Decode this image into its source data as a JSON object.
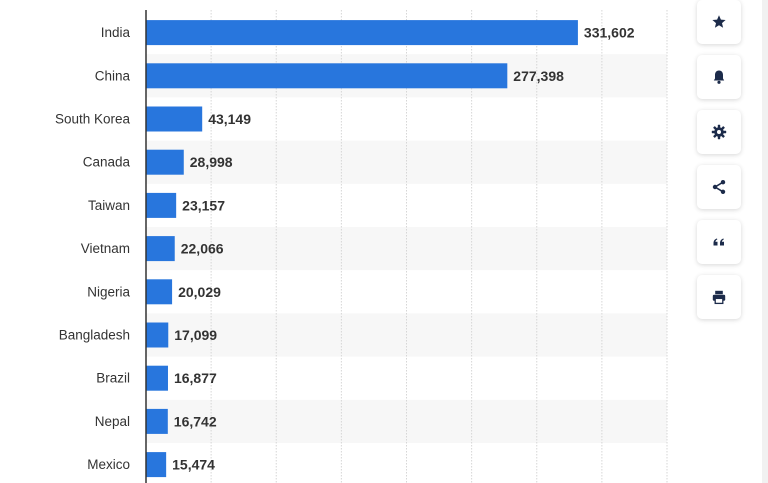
{
  "chart_data": {
    "type": "bar",
    "orientation": "horizontal",
    "categories": [
      "India",
      "China",
      "South Korea",
      "Canada",
      "Taiwan",
      "Vietnam",
      "Nigeria",
      "Bangladesh",
      "Brazil",
      "Nepal",
      "Mexico"
    ],
    "values": [
      331602,
      277398,
      43149,
      28998,
      23157,
      22066,
      20029,
      17099,
      16877,
      16742,
      15474
    ],
    "value_labels": [
      "331,602",
      "277,398",
      "43,149",
      "28,998",
      "23,157",
      "22,066",
      "20,029",
      "17,099",
      "16,877",
      "16,742",
      "15,474"
    ],
    "xlim": [
      0,
      400000
    ],
    "gridlines": true,
    "bar_color": "#2876dd",
    "label_color": "#333333",
    "value_label_color": "#333333"
  },
  "toolbar": {
    "buttons": [
      {
        "name": "favorite-button",
        "icon": "star-icon"
      },
      {
        "name": "notification-button",
        "icon": "bell-icon"
      },
      {
        "name": "settings-button",
        "icon": "gear-icon"
      },
      {
        "name": "share-button",
        "icon": "share-icon"
      },
      {
        "name": "cite-button",
        "icon": "quote-icon"
      },
      {
        "name": "print-button",
        "icon": "printer-icon"
      }
    ],
    "icon_color": "#1c2b4a"
  }
}
